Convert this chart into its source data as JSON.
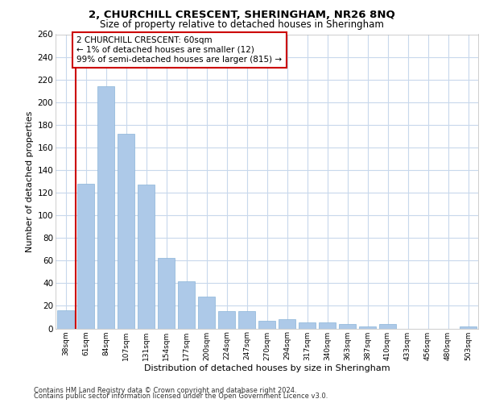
{
  "title": "2, CHURCHILL CRESCENT, SHERINGHAM, NR26 8NQ",
  "subtitle": "Size of property relative to detached houses in Sheringham",
  "xlabel": "Distribution of detached houses by size in Sheringham",
  "ylabel": "Number of detached properties",
  "categories": [
    "38sqm",
    "61sqm",
    "84sqm",
    "107sqm",
    "131sqm",
    "154sqm",
    "177sqm",
    "200sqm",
    "224sqm",
    "247sqm",
    "270sqm",
    "294sqm",
    "317sqm",
    "340sqm",
    "363sqm",
    "387sqm",
    "410sqm",
    "433sqm",
    "456sqm",
    "480sqm",
    "503sqm"
  ],
  "values": [
    16,
    128,
    214,
    172,
    127,
    62,
    42,
    28,
    15,
    15,
    7,
    8,
    5,
    5,
    4,
    2,
    4,
    0,
    0,
    0,
    2
  ],
  "bar_color": "#adc9e8",
  "bar_edge_color": "#8ab4d8",
  "background_color": "#ffffff",
  "grid_color": "#c8d8ec",
  "annotation_text": "2 CHURCHILL CRESCENT: 60sqm\n← 1% of detached houses are smaller (12)\n99% of semi-detached houses are larger (815) →",
  "vline_color": "#cc0000",
  "annotation_box_color": "#ffffff",
  "annotation_box_edge": "#cc0000",
  "ylim": [
    0,
    260
  ],
  "yticks": [
    0,
    20,
    40,
    60,
    80,
    100,
    120,
    140,
    160,
    180,
    200,
    220,
    240,
    260
  ],
  "footer_line1": "Contains HM Land Registry data © Crown copyright and database right 2024.",
  "footer_line2": "Contains public sector information licensed under the Open Government Licence v3.0."
}
